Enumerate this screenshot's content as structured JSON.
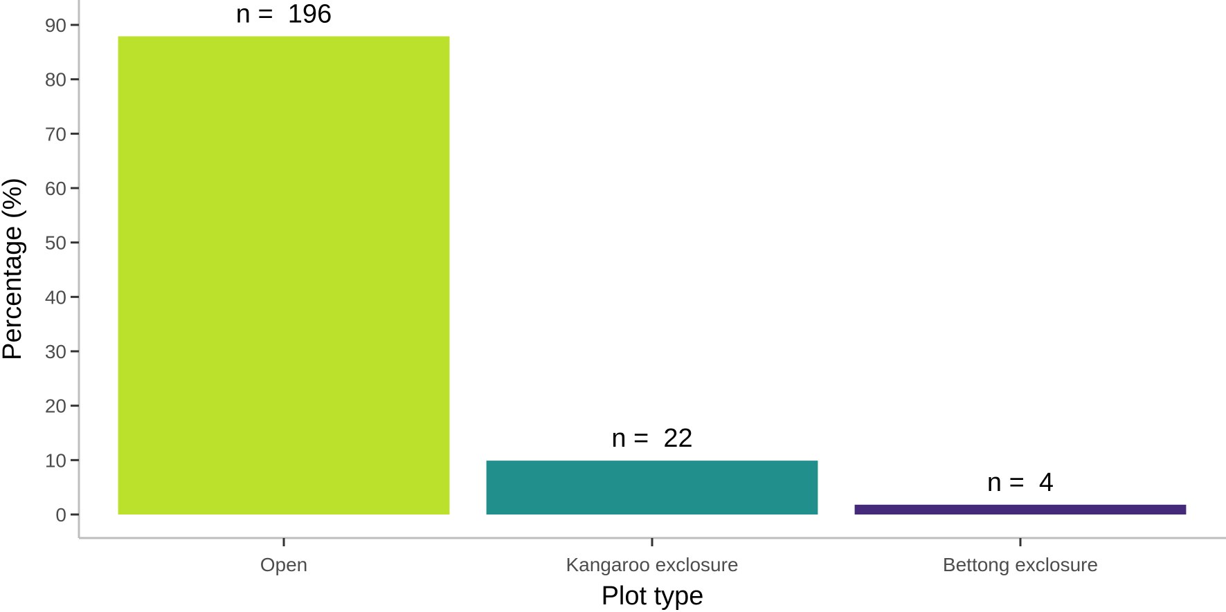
{
  "chart_data": {
    "type": "bar",
    "title": "",
    "xlabel": "Plot type",
    "ylabel": "Percentage (%)",
    "categories": [
      "Open",
      "Kangaroo exclosure",
      "Bettong exclosure"
    ],
    "values": [
      87.9,
      9.9,
      1.8
    ],
    "data_labels": [
      "n =  196",
      "n =  22",
      "n =  4"
    ],
    "colors": [
      "#bce12c",
      "#21908c",
      "#462a7a"
    ],
    "ylim": [
      0,
      94
    ],
    "yticks": [
      0,
      10,
      20,
      30,
      40,
      50,
      60,
      70,
      80,
      90
    ],
    "grid": false,
    "legend": "none"
  }
}
